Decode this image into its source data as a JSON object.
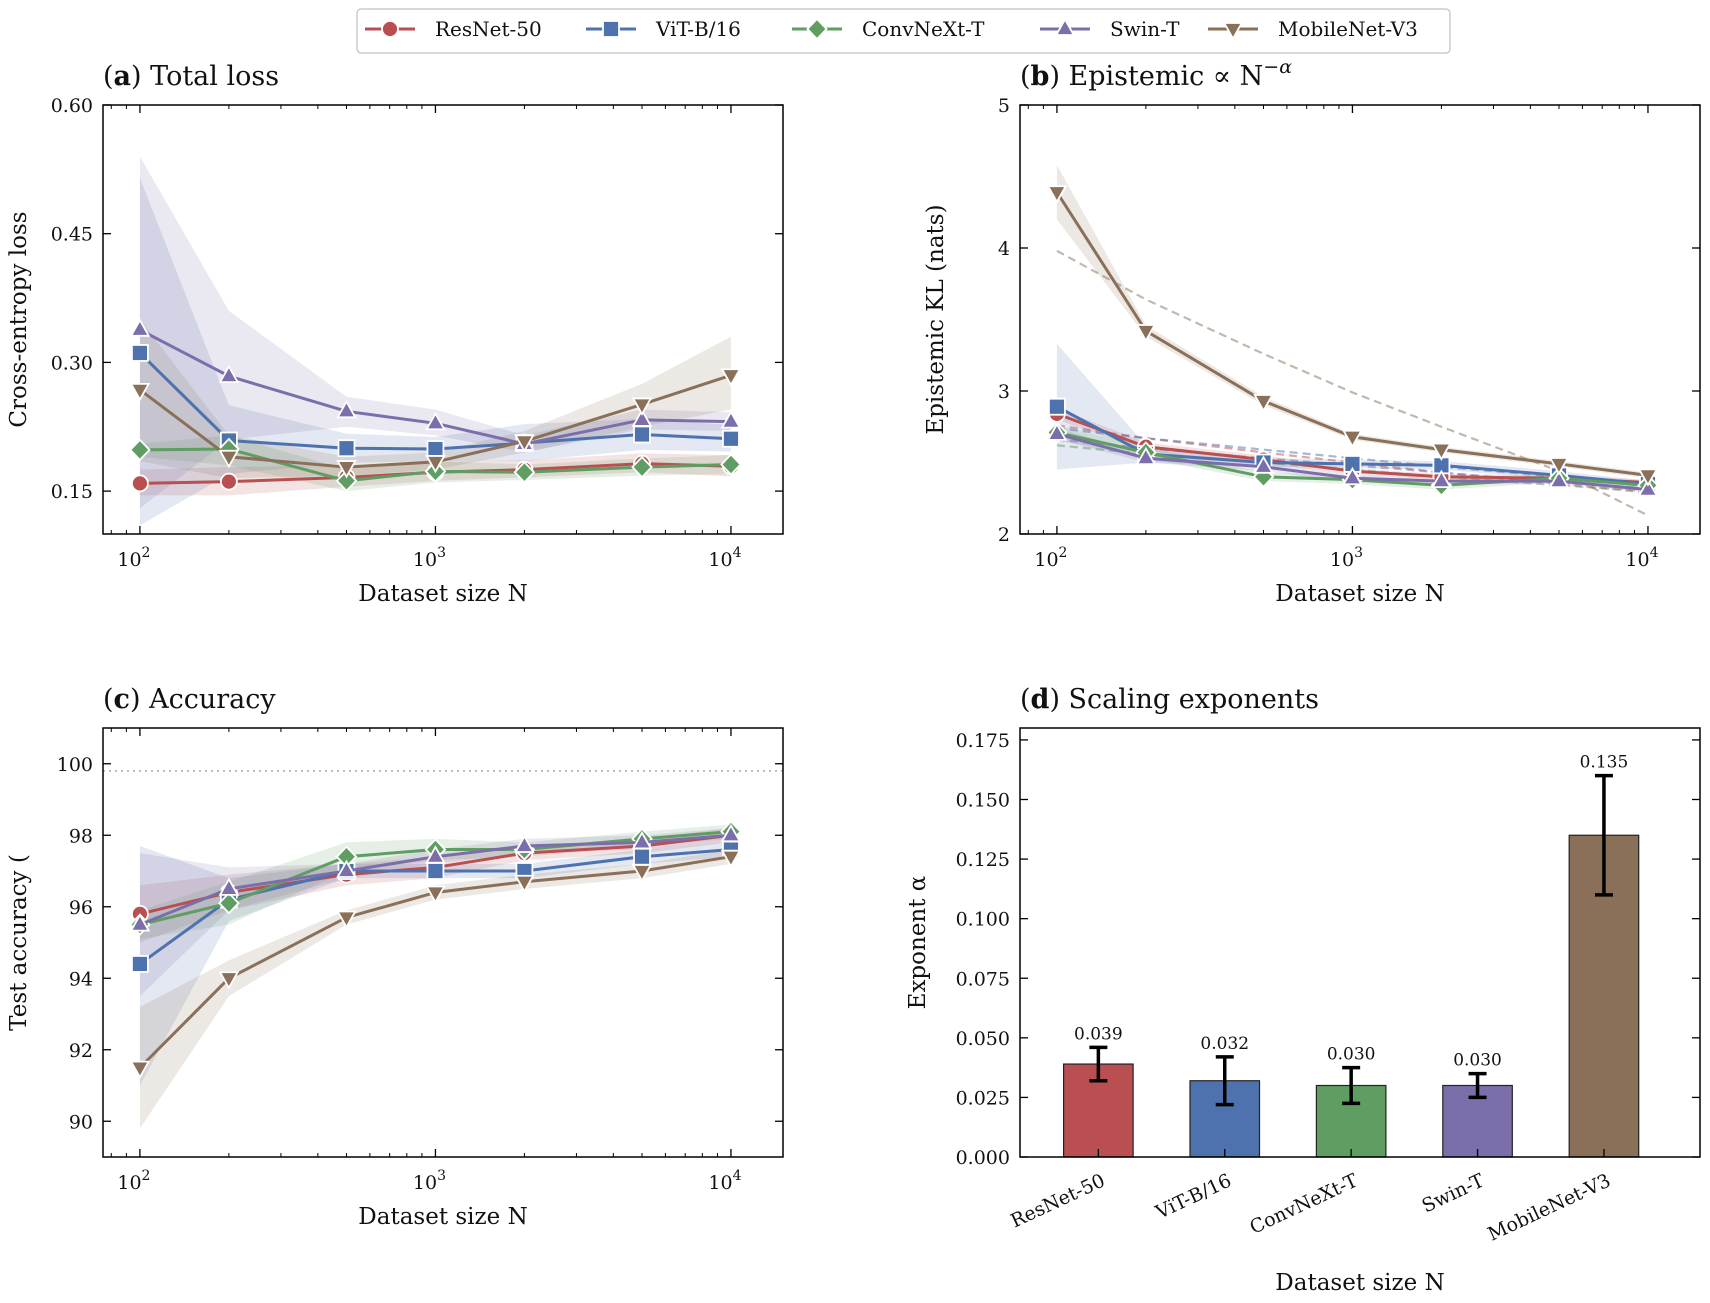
{
  "colors": {
    "ResNet-50": "#b94f51",
    "ViT-B/16": "#4e72ad",
    "ConvNeXt-T": "#5f9d63",
    "Swin-T": "#7c6eaa",
    "MobileNet-V3": "#8a7059"
  },
  "legend": [
    "ResNet-50",
    "ViT-B/16",
    "ConvNeXt-T",
    "Swin-T",
    "MobileNet-V3"
  ],
  "markers": {
    "ResNet-50": "circle",
    "ViT-B/16": "square",
    "ConvNeXt-T": "diamond",
    "Swin-T": "triangle-up",
    "MobileNet-V3": "triangle-down"
  },
  "chart_data": [
    {
      "id": "a",
      "type": "line",
      "title_tag": "a",
      "title_text": "Total loss",
      "xlabel": "Dataset size N",
      "ylabel": "Cross-entropy loss",
      "xscale": "log",
      "xlim": [
        75,
        15000
      ],
      "ylim": [
        0.1,
        0.6
      ],
      "yticks": [
        0.15,
        0.3,
        0.45,
        0.6
      ],
      "ytick_labels": [
        "0.15",
        "0.30",
        "0.45",
        "0.60"
      ],
      "xticks": [
        100,
        1000,
        10000
      ],
      "xtick_labels": [
        "10",
        "10",
        "10"
      ],
      "xtick_exponents": [
        "2",
        "3",
        "4"
      ],
      "x": [
        100,
        200,
        500,
        1000,
        2000,
        5000,
        10000
      ],
      "series": [
        {
          "name": "ResNet-50",
          "values": [
            0.159,
            0.161,
            0.166,
            0.172,
            0.175,
            0.182,
            0.179
          ],
          "lower": [
            0.145,
            0.145,
            0.155,
            0.162,
            0.166,
            0.172,
            0.167
          ],
          "upper": [
            0.175,
            0.178,
            0.18,
            0.184,
            0.186,
            0.194,
            0.192
          ]
        },
        {
          "name": "ViT-B/16",
          "values": [
            0.311,
            0.209,
            0.2,
            0.199,
            0.206,
            0.216,
            0.211
          ],
          "lower": [
            0.11,
            0.17,
            0.183,
            0.185,
            0.185,
            0.198,
            0.196
          ],
          "upper": [
            0.515,
            0.25,
            0.217,
            0.213,
            0.228,
            0.234,
            0.227
          ]
        },
        {
          "name": "ConvNeXt-T",
          "values": [
            0.198,
            0.199,
            0.162,
            0.173,
            0.172,
            0.178,
            0.181
          ],
          "lower": [
            0.19,
            0.18,
            0.15,
            0.16,
            0.163,
            0.168,
            0.17
          ],
          "upper": [
            0.205,
            0.215,
            0.175,
            0.185,
            0.181,
            0.188,
            0.192
          ]
        },
        {
          "name": "Swin-T",
          "values": [
            0.338,
            0.284,
            0.243,
            0.229,
            0.205,
            0.233,
            0.231
          ],
          "lower": [
            0.13,
            0.21,
            0.225,
            0.215,
            0.195,
            0.222,
            0.22
          ],
          "upper": [
            0.54,
            0.36,
            0.26,
            0.245,
            0.215,
            0.245,
            0.242
          ]
        },
        {
          "name": "MobileNet-V3",
          "values": [
            0.268,
            0.19,
            0.178,
            0.184,
            0.208,
            0.251,
            0.285
          ],
          "lower": [
            0.185,
            0.165,
            0.168,
            0.175,
            0.195,
            0.225,
            0.245
          ],
          "upper": [
            0.35,
            0.215,
            0.19,
            0.195,
            0.22,
            0.275,
            0.33
          ]
        }
      ]
    },
    {
      "id": "b",
      "type": "line",
      "title_tag": "b",
      "title_text": "Epistemic ∝ N",
      "title_sup": "−α",
      "xlabel": "Dataset size N",
      "ylabel": "Epistemic KL (nats)",
      "xscale": "log",
      "xlim": [
        75,
        15000
      ],
      "ylim": [
        2,
        5
      ],
      "yticks": [
        2,
        3,
        4,
        5
      ],
      "ytick_labels": [
        "2",
        "3",
        "4",
        "5"
      ],
      "xticks": [
        100,
        1000,
        10000
      ],
      "xtick_labels": [
        "10",
        "10",
        "10"
      ],
      "xtick_exponents": [
        "2",
        "3",
        "4"
      ],
      "x": [
        100,
        200,
        500,
        1000,
        2000,
        5000,
        10000
      ],
      "series": [
        {
          "name": "ResNet-50",
          "values": [
            2.84,
            2.61,
            2.52,
            2.44,
            2.4,
            2.39,
            2.36
          ],
          "lower": [
            2.8,
            2.58,
            2.49,
            2.42,
            2.38,
            2.37,
            2.34
          ],
          "upper": [
            2.88,
            2.64,
            2.55,
            2.46,
            2.42,
            2.41,
            2.38
          ],
          "fit": [
            2.76,
            2.67,
            2.57,
            2.5,
            2.43,
            2.35,
            2.29
          ]
        },
        {
          "name": "ViT-B/16",
          "values": [
            2.89,
            2.56,
            2.5,
            2.49,
            2.48,
            2.41,
            2.35
          ],
          "lower": [
            2.45,
            2.5,
            2.47,
            2.46,
            2.45,
            2.38,
            2.33
          ],
          "upper": [
            3.33,
            2.62,
            2.53,
            2.52,
            2.51,
            2.44,
            2.37
          ],
          "fit": [
            2.74,
            2.67,
            2.59,
            2.53,
            2.47,
            2.4,
            2.35
          ]
        },
        {
          "name": "ConvNeXt-T",
          "values": [
            2.71,
            2.57,
            2.4,
            2.38,
            2.34,
            2.39,
            2.34
          ],
          "lower": [
            2.66,
            2.53,
            2.37,
            2.35,
            2.31,
            2.36,
            2.32
          ],
          "upper": [
            2.76,
            2.61,
            2.43,
            2.41,
            2.37,
            2.42,
            2.36
          ],
          "fit": [
            2.62,
            2.56,
            2.5,
            2.45,
            2.4,
            2.34,
            2.3
          ]
        },
        {
          "name": "Swin-T",
          "values": [
            2.7,
            2.53,
            2.47,
            2.39,
            2.37,
            2.37,
            2.31
          ],
          "lower": [
            2.66,
            2.5,
            2.44,
            2.36,
            2.35,
            2.35,
            2.29
          ],
          "upper": [
            2.74,
            2.56,
            2.5,
            2.42,
            2.39,
            2.39,
            2.33
          ],
          "fit": [
            2.66,
            2.6,
            2.53,
            2.48,
            2.43,
            2.36,
            2.32
          ]
        },
        {
          "name": "MobileNet-V3",
          "values": [
            4.39,
            3.42,
            2.93,
            2.68,
            2.59,
            2.49,
            2.41
          ],
          "lower": [
            4.2,
            3.38,
            2.9,
            2.66,
            2.57,
            2.47,
            2.39
          ],
          "upper": [
            4.58,
            3.46,
            2.96,
            2.7,
            2.61,
            2.51,
            2.43
          ],
          "fit": [
            3.98,
            3.64,
            3.26,
            2.99,
            2.75,
            2.44,
            2.13
          ]
        }
      ]
    },
    {
      "id": "c",
      "type": "line",
      "title_tag": "c",
      "title_text": "Accuracy",
      "xlabel": "Dataset size N",
      "ylabel": "Test accuracy (",
      "xscale": "log",
      "xlim": [
        75,
        15000
      ],
      "ylim": [
        89,
        101
      ],
      "yticks": [
        90,
        92,
        94,
        96,
        98,
        100
      ],
      "ytick_labels": [
        "90",
        "92",
        "94",
        "96",
        "98",
        "100"
      ],
      "xticks": [
        100,
        1000,
        10000
      ],
      "xtick_labels": [
        "10",
        "10",
        "10"
      ],
      "xtick_exponents": [
        "2",
        "3",
        "4"
      ],
      "reference_line": 99.8,
      "x": [
        100,
        200,
        500,
        1000,
        2000,
        5000,
        10000
      ],
      "series": [
        {
          "name": "ResNet-50",
          "values": [
            95.8,
            96.4,
            96.9,
            97.1,
            97.5,
            97.7,
            98.0
          ],
          "lower": [
            95.0,
            95.9,
            96.6,
            96.8,
            97.3,
            97.5,
            97.8
          ],
          "upper": [
            96.6,
            96.9,
            97.2,
            97.4,
            97.7,
            97.9,
            98.2
          ]
        },
        {
          "name": "ViT-B/16",
          "values": [
            94.4,
            96.2,
            97.0,
            97.0,
            97.0,
            97.4,
            97.6
          ],
          "lower": [
            91.0,
            95.6,
            96.8,
            96.8,
            96.8,
            97.2,
            97.4
          ],
          "upper": [
            97.7,
            96.8,
            97.2,
            97.2,
            97.2,
            97.6,
            97.8
          ]
        },
        {
          "name": "ConvNeXt-T",
          "values": [
            95.5,
            96.1,
            97.4,
            97.6,
            97.6,
            97.9,
            98.1
          ],
          "lower": [
            95.1,
            95.5,
            97.0,
            97.3,
            97.4,
            97.7,
            97.9
          ],
          "upper": [
            95.9,
            96.7,
            97.8,
            97.9,
            97.8,
            98.1,
            98.3
          ]
        },
        {
          "name": "Swin-T",
          "values": [
            95.5,
            96.5,
            97.0,
            97.4,
            97.7,
            97.8,
            98.0
          ],
          "lower": [
            93.5,
            95.9,
            96.8,
            97.2,
            97.5,
            97.6,
            97.8
          ],
          "upper": [
            97.5,
            97.1,
            97.2,
            97.6,
            97.9,
            98.0,
            98.2
          ]
        },
        {
          "name": "MobileNet-V3",
          "values": [
            91.5,
            94.0,
            95.7,
            96.4,
            96.7,
            97.0,
            97.4
          ],
          "lower": [
            89.8,
            93.5,
            95.5,
            96.2,
            96.5,
            96.8,
            97.2
          ],
          "upper": [
            93.2,
            94.5,
            95.9,
            96.6,
            96.9,
            97.2,
            97.6
          ]
        }
      ]
    },
    {
      "id": "d",
      "type": "bar",
      "title_tag": "d",
      "title_text": "Scaling exponents",
      "xlabel": "Dataset size N",
      "ylabel": "Exponent α",
      "ylim": [
        0,
        0.18
      ],
      "yticks": [
        0,
        0.025,
        0.05,
        0.075,
        0.1,
        0.125,
        0.15,
        0.175
      ],
      "ytick_labels": [
        "0.000",
        "0.025",
        "0.050",
        "0.075",
        "0.100",
        "0.125",
        "0.150",
        "0.175"
      ],
      "categories": [
        "ResNet-50",
        "ViT-B/16",
        "ConvNeXt-T",
        "Swin-T",
        "MobileNet-V3"
      ],
      "values": [
        0.039,
        0.032,
        0.03,
        0.03,
        0.135
      ],
      "errors": [
        0.007,
        0.01,
        0.0075,
        0.005,
        0.025
      ],
      "value_labels": [
        "0.039",
        "0.032",
        "0.030",
        "0.030",
        "0.135"
      ]
    }
  ]
}
